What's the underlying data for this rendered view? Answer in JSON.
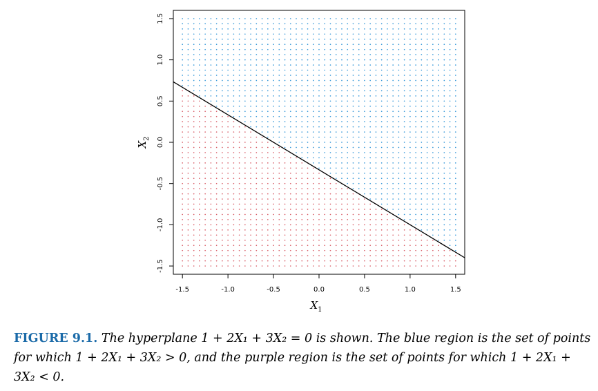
{
  "chart_data": {
    "type": "scatter",
    "xlabel": "X",
    "xlabel_subscript": "1",
    "ylabel": "X",
    "ylabel_subscript": "2",
    "xlim": [
      -1.6,
      1.6
    ],
    "ylim": [
      -1.6,
      1.6
    ],
    "x_ticks": [
      -1.5,
      -1.0,
      -0.5,
      0.0,
      0.5,
      1.0,
      1.5
    ],
    "x_tick_labels": [
      "-1.5",
      "-1.0",
      "-0.5",
      "0.0",
      "0.5",
      "1.0",
      "1.5"
    ],
    "y_ticks": [
      -1.5,
      -1.0,
      -0.5,
      0.0,
      0.5,
      1.0,
      1.5
    ],
    "y_tick_labels": [
      "-1.5",
      "-1.0",
      "-0.5",
      "0.0",
      "0.5",
      "1.0",
      "1.5"
    ],
    "grid": false,
    "grid_points": {
      "start": -1.5,
      "end": 1.5,
      "step": 0.0625
    },
    "hyperplane": {
      "intercept": 1,
      "coef_x1": 2,
      "coef_x2": 3
    },
    "series": [
      {
        "region": "1 + 2X1 + 3X2 > 0",
        "color": "#3a9ad9"
      },
      {
        "region": "1 + 2X1 + 3X2 < 0",
        "color": "#d9606a"
      }
    ],
    "line_color": "#000000"
  },
  "caption": {
    "label": "FIGURE 9.1.",
    "text": "The hyperplane 1 + 2X₁ + 3X₂ = 0 is shown. The blue region is the set of points for which 1 + 2X₁ + 3X₂ > 0, and the purple region is the set of points for which 1 + 2X₁ + 3X₂ < 0."
  }
}
